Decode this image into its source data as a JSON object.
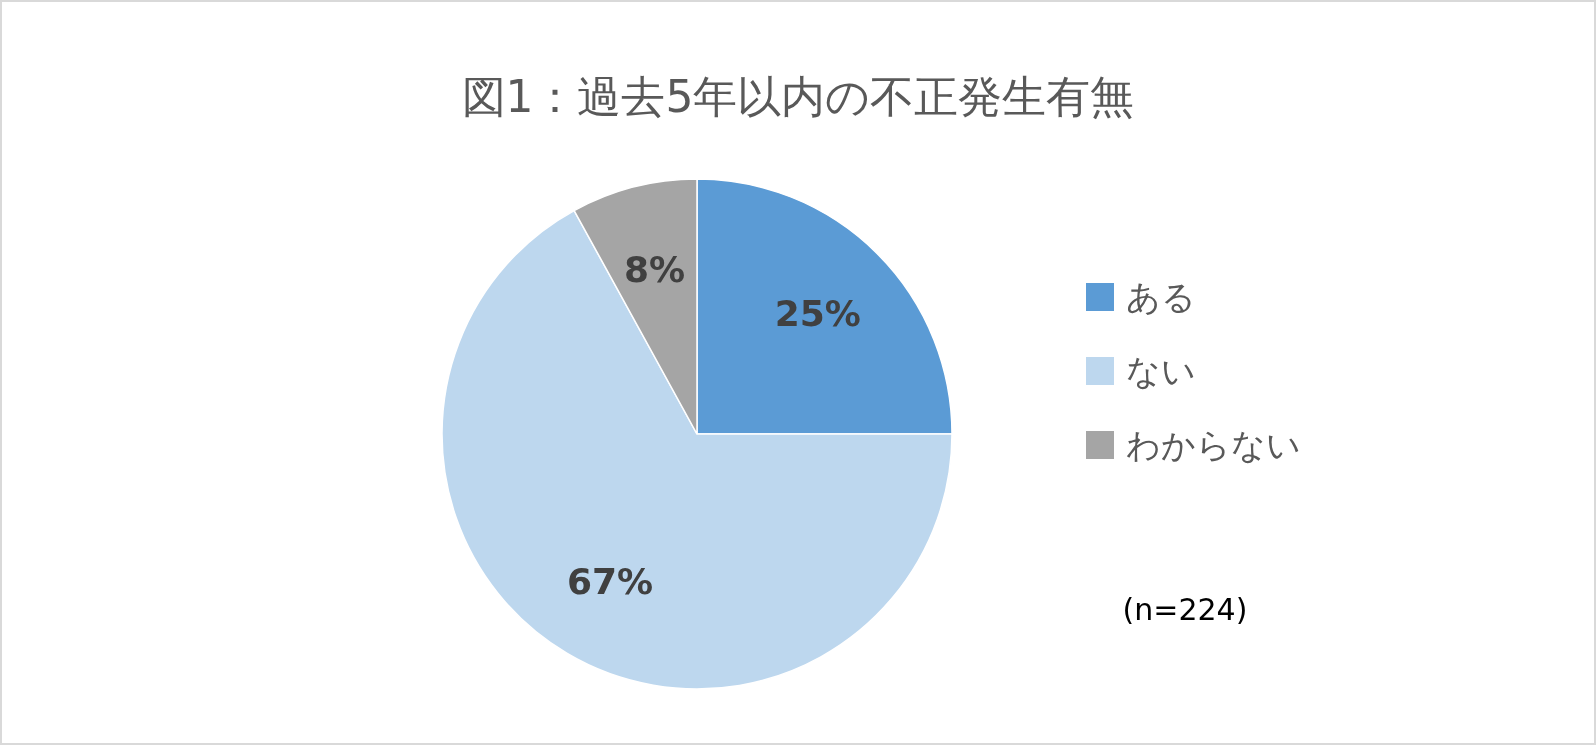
{
  "chart_data": {
    "type": "pie",
    "title": "図1：過去5年以内の不正発生有無",
    "categories": [
      "ある",
      "ない",
      "わからない"
    ],
    "values": [
      25,
      67,
      8
    ],
    "colors": [
      "#5b9bd5",
      "#bdd7ee",
      "#a5a5a5"
    ],
    "value_labels": [
      "25%",
      "67%",
      "8%"
    ],
    "legend": "right",
    "annotations": [
      "(n=224)"
    ]
  }
}
